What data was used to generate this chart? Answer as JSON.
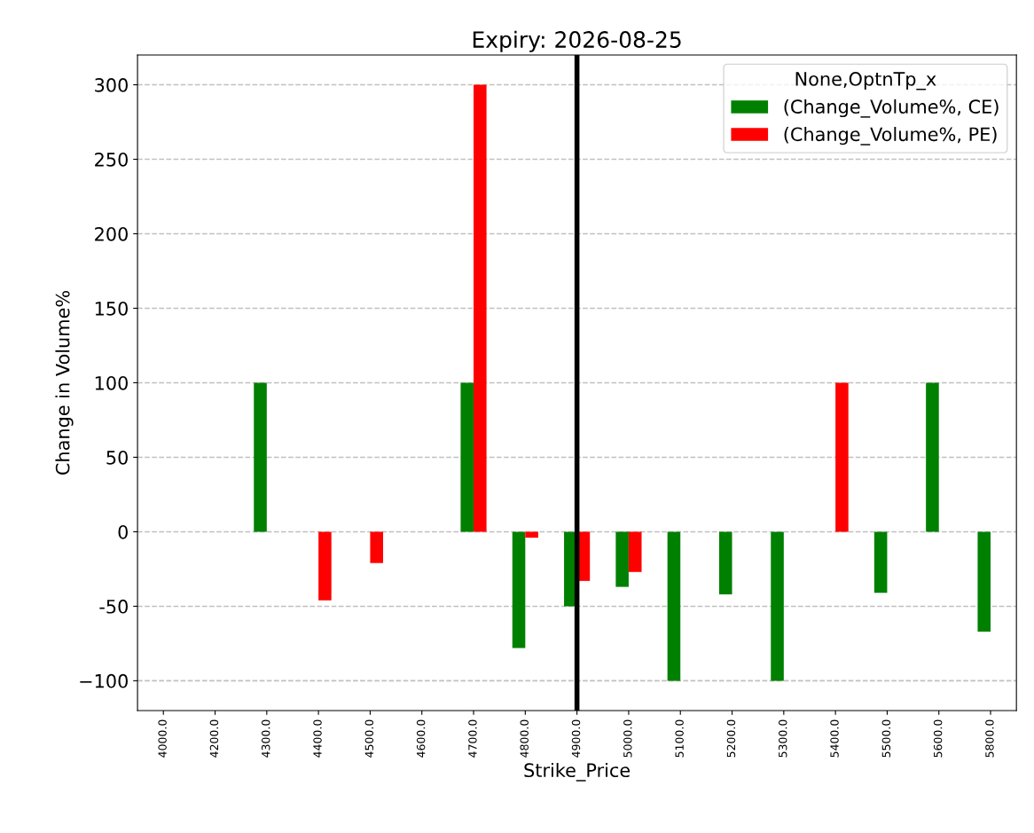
{
  "chart_data": {
    "type": "bar",
    "title": "Expiry: 2026-08-25",
    "xlabel": "Strike_Price",
    "ylabel": "Change in Volume%",
    "legend_title": "None,OptnTp_x",
    "categories": [
      "4000.0",
      "4200.0",
      "4300.0",
      "4400.0",
      "4500.0",
      "4600.0",
      "4700.0",
      "4800.0",
      "4900.0",
      "5000.0",
      "5100.0",
      "5200.0",
      "5300.0",
      "5400.0",
      "5500.0",
      "5600.0",
      "5800.0"
    ],
    "series": [
      {
        "name": "(Change_Volume%, CE)",
        "color": "#008000",
        "values": [
          null,
          null,
          100,
          null,
          null,
          null,
          100,
          -78,
          -50,
          -37,
          -100,
          -42,
          -100,
          null,
          -41,
          100,
          -67
        ]
      },
      {
        "name": "(Change_Volume%, PE)",
        "color": "#ff0000",
        "values": [
          null,
          null,
          null,
          -46,
          -21,
          null,
          300,
          -4,
          -33,
          -27,
          null,
          null,
          null,
          100,
          null,
          null,
          null
        ]
      }
    ],
    "ylim": [
      -120,
      320
    ],
    "yticks": [
      {
        "value": -100,
        "label": "−100"
      },
      -50,
      0,
      50,
      100,
      150,
      200,
      250,
      300
    ],
    "ref_lines": [
      {
        "axis": "x",
        "value": "4900.0",
        "color": "#000000",
        "line_style": "solid"
      }
    ],
    "grid": "y",
    "legend": "top right"
  }
}
